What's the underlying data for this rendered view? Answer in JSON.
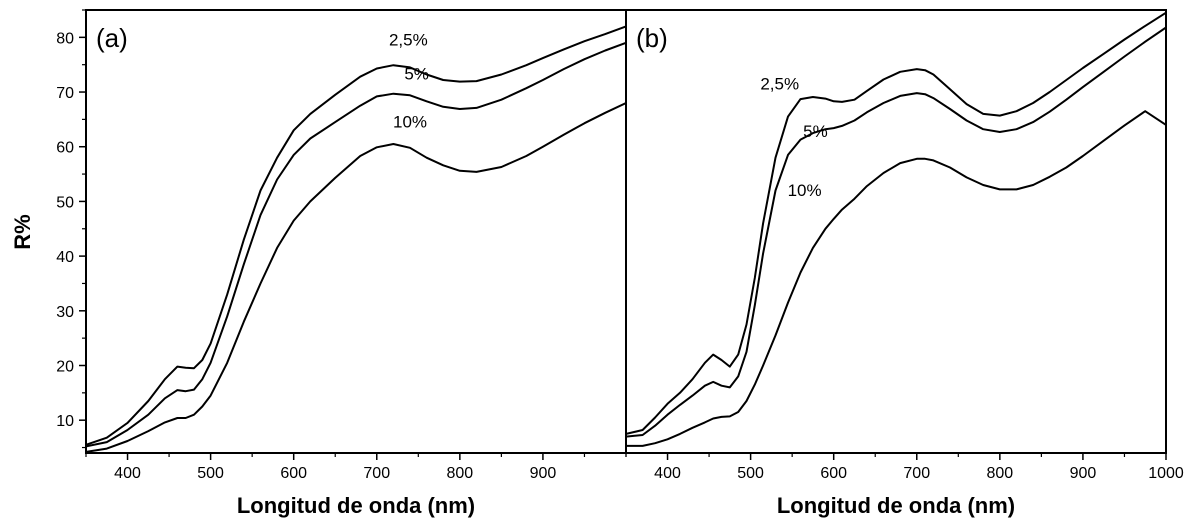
{
  "figure": {
    "ylabel": "R%"
  },
  "chart_data": [
    {
      "type": "line",
      "panel_label": "(a)",
      "xlabel": "Longitud de onda (nm)",
      "ylabel": "R%",
      "xlim": [
        350,
        1000
      ],
      "ylim": [
        4,
        85
      ],
      "xticks": [
        400,
        500,
        600,
        700,
        800,
        900
      ],
      "yticks": [
        10,
        20,
        30,
        40,
        50,
        60,
        70,
        80
      ],
      "grid": false,
      "series": [
        {
          "name": "2,5%",
          "x": [
            350,
            375,
            400,
            425,
            445,
            460,
            470,
            480,
            490,
            500,
            520,
            540,
            560,
            580,
            600,
            620,
            650,
            680,
            700,
            720,
            740,
            760,
            780,
            800,
            820,
            850,
            880,
            900,
            925,
            950,
            975,
            1000
          ],
          "y": [
            5.5,
            6.8,
            9.5,
            13.5,
            17.5,
            19.8,
            19.6,
            19.5,
            21,
            24,
            33,
            43,
            52,
            58,
            63,
            66,
            69.5,
            72.8,
            74.3,
            74.9,
            74.5,
            73.2,
            72.2,
            71.9,
            72,
            73.2,
            74.9,
            76.2,
            77.8,
            79.3,
            80.6,
            82
          ]
        },
        {
          "name": "5%",
          "x": [
            350,
            375,
            400,
            425,
            445,
            460,
            470,
            480,
            490,
            500,
            520,
            540,
            560,
            580,
            600,
            620,
            650,
            680,
            700,
            720,
            740,
            760,
            780,
            800,
            820,
            850,
            880,
            900,
            925,
            950,
            975,
            1000
          ],
          "y": [
            5.2,
            6,
            8.2,
            11,
            14,
            15.5,
            15.3,
            15.6,
            17.5,
            20.5,
            29,
            38.5,
            47.5,
            54,
            58.5,
            61.5,
            64.5,
            67.5,
            69.2,
            69.7,
            69.4,
            68.3,
            67.3,
            66.9,
            67.1,
            68.6,
            70.7,
            72.2,
            74.2,
            76,
            77.6,
            79
          ]
        },
        {
          "name": "10%",
          "x": [
            350,
            375,
            400,
            425,
            445,
            460,
            470,
            480,
            490,
            500,
            520,
            540,
            560,
            580,
            600,
            620,
            650,
            680,
            700,
            720,
            740,
            760,
            780,
            800,
            820,
            850,
            880,
            900,
            925,
            950,
            975,
            1000
          ],
          "y": [
            4.2,
            4.8,
            6.2,
            8,
            9.6,
            10.4,
            10.4,
            11,
            12.5,
            14.5,
            20.5,
            28,
            35,
            41.5,
            46.5,
            50,
            54.3,
            58.3,
            59.9,
            60.5,
            59.8,
            58,
            56.6,
            55.6,
            55.4,
            56.3,
            58.3,
            60,
            62.2,
            64.3,
            66.2,
            68
          ]
        }
      ],
      "annotations": [
        {
          "text": "2,5%",
          "x": 738,
          "y": 78.5
        },
        {
          "text": "5%",
          "x": 748,
          "y": 72.3
        },
        {
          "text": "10%",
          "x": 740,
          "y": 63.5
        }
      ]
    },
    {
      "type": "line",
      "panel_label": "(b)",
      "xlabel": "Longitud de onda (nm)",
      "ylabel": "R%",
      "xlim": [
        350,
        1000
      ],
      "ylim": [
        4,
        85
      ],
      "xticks": [
        400,
        500,
        600,
        700,
        800,
        900,
        1000
      ],
      "yticks": [
        10,
        20,
        30,
        40,
        50,
        60,
        70,
        80
      ],
      "grid": false,
      "series": [
        {
          "name": "2,5%",
          "x": [
            350,
            370,
            385,
            400,
            415,
            430,
            445,
            455,
            465,
            475,
            485,
            495,
            505,
            515,
            530,
            545,
            560,
            575,
            590,
            600,
            610,
            625,
            640,
            660,
            680,
            700,
            710,
            720,
            740,
            760,
            780,
            800,
            820,
            840,
            860,
            880,
            900,
            925,
            950,
            975,
            1000
          ],
          "y": [
            7.5,
            8.2,
            10.5,
            13,
            15,
            17.5,
            20.5,
            22,
            21,
            19.8,
            22,
            27.5,
            36,
            46,
            58,
            65.5,
            68.7,
            69.1,
            68.8,
            68.3,
            68.2,
            68.6,
            70.2,
            72.3,
            73.7,
            74.2,
            74,
            73.2,
            70.5,
            67.8,
            66,
            65.7,
            66.5,
            68,
            70,
            72.2,
            74.4,
            77,
            79.6,
            82.1,
            84.5
          ]
        },
        {
          "name": "5%",
          "x": [
            350,
            370,
            385,
            400,
            415,
            430,
            445,
            455,
            465,
            475,
            485,
            495,
            505,
            515,
            530,
            545,
            560,
            575,
            590,
            600,
            610,
            625,
            640,
            660,
            680,
            700,
            710,
            720,
            740,
            760,
            780,
            800,
            820,
            840,
            860,
            880,
            900,
            925,
            950,
            975,
            1000
          ],
          "y": [
            7,
            7.3,
            9,
            11,
            12.8,
            14.5,
            16.3,
            17,
            16.3,
            16,
            18,
            22.5,
            31,
            40.5,
            52,
            58.5,
            61.3,
            62.5,
            63.2,
            63.4,
            63.8,
            64.8,
            66.3,
            68,
            69.3,
            69.8,
            69.6,
            68.9,
            66.9,
            64.8,
            63.2,
            62.7,
            63.2,
            64.5,
            66.4,
            68.6,
            70.9,
            73.7,
            76.5,
            79.2,
            81.8
          ]
        },
        {
          "name": "10%",
          "x": [
            350,
            370,
            385,
            400,
            415,
            430,
            445,
            455,
            465,
            475,
            485,
            495,
            505,
            515,
            530,
            545,
            560,
            575,
            590,
            600,
            610,
            625,
            640,
            660,
            680,
            700,
            710,
            720,
            740,
            760,
            780,
            800,
            820,
            840,
            860,
            880,
            900,
            925,
            950,
            975,
            1000
          ],
          "y": [
            5.3,
            5.3,
            5.8,
            6.5,
            7.5,
            8.6,
            9.6,
            10.3,
            10.6,
            10.7,
            11.5,
            13.5,
            16.5,
            20,
            25.5,
            31.5,
            37,
            41.5,
            45,
            46.8,
            48.5,
            50.5,
            52.8,
            55.2,
            57,
            57.8,
            57.8,
            57.5,
            56.2,
            54.4,
            53,
            52.2,
            52.2,
            53,
            54.5,
            56.2,
            58.3,
            61.1,
            63.9,
            66.5,
            64
          ]
        }
      ],
      "annotations": [
        {
          "text": "2,5%",
          "x": 535,
          "y": 70.5
        },
        {
          "text": "5%",
          "x": 578,
          "y": 61.8
        },
        {
          "text": "10%",
          "x": 565,
          "y": 51
        }
      ]
    }
  ]
}
